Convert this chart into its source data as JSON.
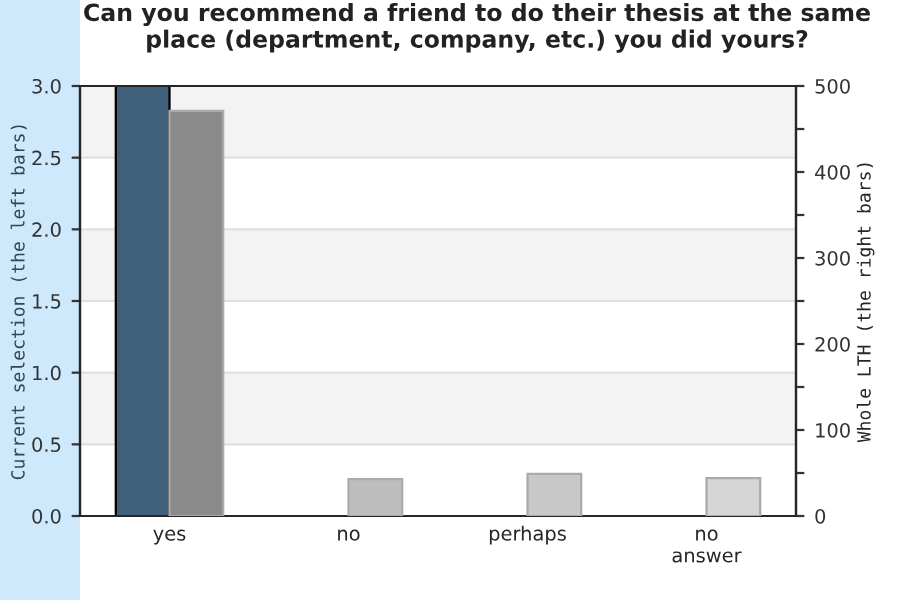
{
  "chart_data": {
    "type": "bar",
    "title": "Can you recommend a friend to do their thesis at the same place (department, company, etc.) you did yours?",
    "categories": [
      "yes",
      "no",
      "perhaps",
      "no\nanswer"
    ],
    "series": [
      {
        "values": [
          3.0,
          0,
          0,
          0
        ],
        "colors": [
          "#3f5f7a",
          "#3f5f7a",
          "#3f5f7a",
          "#3f5f7a"
        ],
        "axis": "y"
      },
      {
        "values": [
          471,
          43,
          49,
          44
        ],
        "colors": [
          "#8a8a8a",
          "#bdbdbd",
          "#c8c8c8",
          "#d6d6d6"
        ],
        "axis": "y2"
      }
    ],
    "ylabel": "Current selection (the left bars)",
    "y2label": "Whole LTH (the right bars)",
    "ylim": [
      0,
      3.0
    ],
    "yticks": [
      {
        "value": 0,
        "label": "0.0"
      },
      {
        "value": 0.5,
        "label": "0.5"
      },
      {
        "value": 1,
        "label": "1.0"
      },
      {
        "value": 1.5,
        "label": "1.5"
      },
      {
        "value": 2,
        "label": "2.0"
      },
      {
        "value": 2.5,
        "label": "2.5"
      },
      {
        "value": 3,
        "label": "3.0"
      }
    ],
    "y2lim": [
      0,
      500
    ],
    "y2ticks": [
      0,
      {
        "value": 50,
        "label": null
      },
      100,
      {
        "value": 150,
        "label": null
      },
      200,
      {
        "value": 250,
        "label": null
      },
      300,
      {
        "value": 350,
        "label": null
      },
      400,
      {
        "value": 450,
        "label": null
      },
      500
    ],
    "bands": [
      {
        "axis": "y",
        "from": 0.5,
        "to": 1.0,
        "color": "#f3f3f3"
      },
      {
        "axis": "y",
        "from": 1.5,
        "to": 2.0,
        "color": "#f3f3f3"
      },
      {
        "axis": "y",
        "from": 2.5,
        "to": 3.0,
        "color": "#f3f3f3"
      }
    ],
    "grid": "y"
  }
}
